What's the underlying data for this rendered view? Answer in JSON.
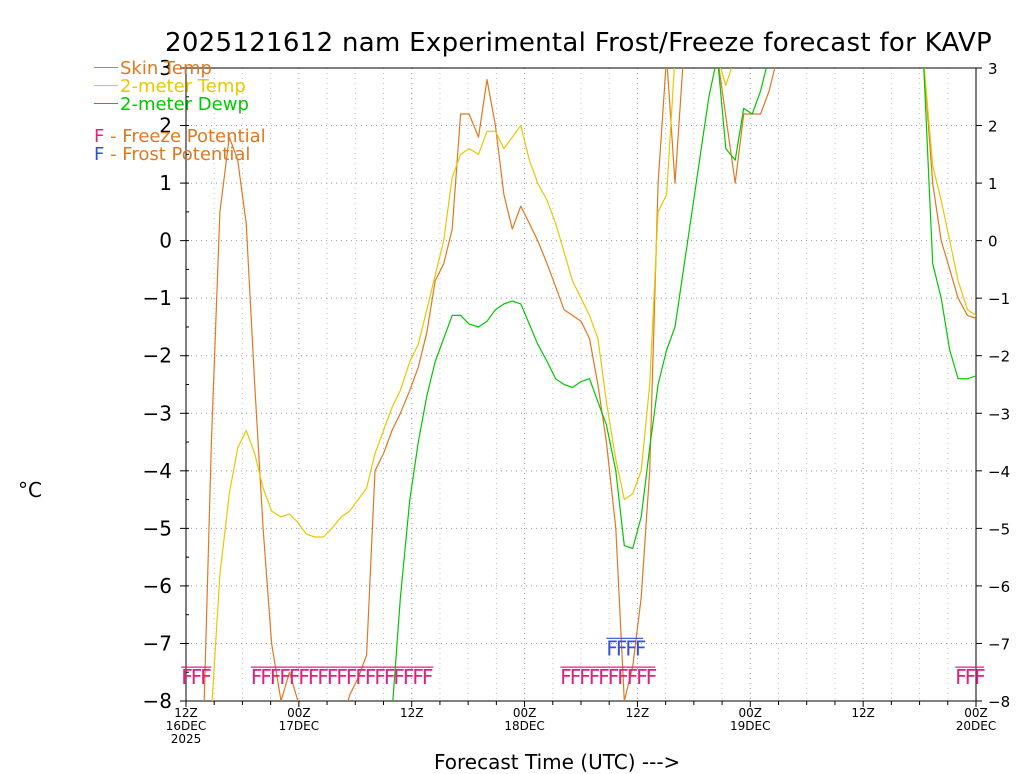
{
  "title": "2025121612 nam Experimental Frost/Freeze forecast for KAVP",
  "ylabel": "°C",
  "xlabel": "Forecast Time (UTC) --->",
  "colors": {
    "skin": "#e07820",
    "temp": "#e8c800",
    "dewp": "#00c800",
    "freeze": "#e0207c",
    "frost": "#3050d8",
    "grid": "#9a9a9a",
    "axis": "#000000"
  },
  "legend": {
    "skin": "Skin Temp",
    "temp": "2-meter Temp",
    "dewp": "2-meter Dewp",
    "freeze_letter": "F",
    "freeze_text": "- Freeze Potential",
    "frost_letter": "F",
    "frost_text": "- Frost Potential"
  },
  "chart_data": {
    "type": "line",
    "title": "2025121612 nam Experimental Frost/Freeze forecast for KAVP",
    "xlabel": "Forecast Time (UTC) --->",
    "ylabel": "°C",
    "xlim": [
      0,
      84
    ],
    "ylim": [
      -8,
      3
    ],
    "x_unit": "forecast hours from 2025-12-16 12Z",
    "yticks": [
      -8,
      -7,
      -6,
      -5,
      -4,
      -3,
      -2,
      -1,
      0,
      1,
      2,
      3
    ],
    "xticks": [
      {
        "x": 0,
        "label": "12Z",
        "sub": "16DEC",
        "sub2": "2025"
      },
      {
        "x": 12,
        "label": "00Z",
        "sub": "17DEC",
        "sub2": ""
      },
      {
        "x": 24,
        "label": "12Z",
        "sub": "",
        "sub2": ""
      },
      {
        "x": 36,
        "label": "00Z",
        "sub": "18DEC",
        "sub2": ""
      },
      {
        "x": 48,
        "label": "12Z",
        "sub": "",
        "sub2": ""
      },
      {
        "x": 60,
        "label": "00Z",
        "sub": "19DEC",
        "sub2": ""
      },
      {
        "x": 72,
        "label": "12Z",
        "sub": "",
        "sub2": ""
      },
      {
        "x": 84,
        "label": "00Z",
        "sub": "20DEC",
        "sub2": ""
      }
    ],
    "series": [
      {
        "name": "Skin Temp",
        "key": "skin",
        "points": [
          [
            1.9,
            -8.2
          ],
          [
            2.7,
            -3.5
          ],
          [
            3.6,
            0.5
          ],
          [
            4.6,
            1.8
          ],
          [
            5.5,
            1.4
          ],
          [
            6.4,
            0.3
          ],
          [
            7.3,
            -2.5
          ],
          [
            8.2,
            -5.0
          ],
          [
            9.1,
            -7.0
          ],
          [
            10.1,
            -8.0
          ],
          [
            11.0,
            -7.5
          ],
          [
            11.9,
            -8.0
          ],
          [
            12.8,
            -8.5
          ],
          [
            14.6,
            -8.5
          ],
          [
            16.5,
            -8.5
          ],
          [
            17.4,
            -7.9
          ],
          [
            18.3,
            -7.6
          ],
          [
            19.2,
            -7.2
          ],
          [
            20.1,
            -4.0
          ],
          [
            21.0,
            -3.7
          ],
          [
            21.9,
            -3.3
          ],
          [
            22.8,
            -3.0
          ],
          [
            23.8,
            -2.6
          ],
          [
            24.7,
            -2.2
          ],
          [
            25.6,
            -1.6
          ],
          [
            26.5,
            -0.7
          ],
          [
            27.4,
            -0.4
          ],
          [
            28.3,
            0.2
          ],
          [
            29.2,
            2.2
          ],
          [
            30.1,
            2.2
          ],
          [
            31.1,
            1.8
          ],
          [
            32.0,
            2.8
          ],
          [
            32.9,
            2.0
          ],
          [
            33.8,
            0.8
          ],
          [
            34.7,
            0.2
          ],
          [
            35.6,
            0.6
          ],
          [
            36.5,
            0.3
          ],
          [
            37.4,
            0.0
          ],
          [
            38.4,
            -0.4
          ],
          [
            39.3,
            -0.8
          ],
          [
            40.2,
            -1.2
          ],
          [
            41.1,
            -1.3
          ],
          [
            42.0,
            -1.4
          ],
          [
            42.9,
            -1.7
          ],
          [
            43.8,
            -2.5
          ],
          [
            44.7,
            -3.5
          ],
          [
            45.7,
            -5.0
          ],
          [
            46.6,
            -8.0
          ],
          [
            47.5,
            -7.4
          ],
          [
            48.4,
            -6.2
          ],
          [
            49.3,
            -4.0
          ],
          [
            50.2,
            1.0
          ],
          [
            51.1,
            3.2
          ],
          [
            52.0,
            1.0
          ],
          [
            52.9,
            3.2
          ],
          [
            56.5,
            3.2
          ],
          [
            58.4,
            1.0
          ],
          [
            59.3,
            2.2
          ],
          [
            60.2,
            2.2
          ],
          [
            61.1,
            2.2
          ],
          [
            62.0,
            2.6
          ],
          [
            62.9,
            3.2
          ],
          [
            78.4,
            3.2
          ],
          [
            79.4,
            1.0
          ],
          [
            80.3,
            0.0
          ],
          [
            81.2,
            -0.5
          ],
          [
            82.1,
            -1.0
          ],
          [
            83.1,
            -1.3
          ],
          [
            84,
            -1.35
          ]
        ]
      },
      {
        "name": "2-meter Temp",
        "key": "temp",
        "points": [
          [
            2.7,
            -8.2
          ],
          [
            3.6,
            -5.8
          ],
          [
            4.6,
            -4.4
          ],
          [
            5.5,
            -3.6
          ],
          [
            6.4,
            -3.3
          ],
          [
            7.3,
            -3.7
          ],
          [
            8.2,
            -4.3
          ],
          [
            9.1,
            -4.7
          ],
          [
            10.1,
            -4.8
          ],
          [
            11.0,
            -4.75
          ],
          [
            11.9,
            -4.9
          ],
          [
            12.8,
            -5.1
          ],
          [
            13.7,
            -5.15
          ],
          [
            14.6,
            -5.15
          ],
          [
            15.5,
            -5.0
          ],
          [
            16.5,
            -4.8
          ],
          [
            17.4,
            -4.7
          ],
          [
            18.3,
            -4.5
          ],
          [
            19.2,
            -4.3
          ],
          [
            20.1,
            -3.7
          ],
          [
            21.0,
            -3.3
          ],
          [
            21.9,
            -2.9
          ],
          [
            22.8,
            -2.6
          ],
          [
            23.8,
            -2.1
          ],
          [
            24.7,
            -1.8
          ],
          [
            25.6,
            -1.2
          ],
          [
            26.5,
            -0.6
          ],
          [
            27.4,
            0.0
          ],
          [
            28.3,
            1.1
          ],
          [
            29.2,
            1.5
          ],
          [
            30.1,
            1.6
          ],
          [
            31.1,
            1.5
          ],
          [
            32.0,
            1.9
          ],
          [
            32.9,
            1.9
          ],
          [
            33.8,
            1.6
          ],
          [
            34.7,
            1.8
          ],
          [
            35.6,
            2.0
          ],
          [
            36.5,
            1.4
          ],
          [
            37.4,
            1.0
          ],
          [
            38.4,
            0.7
          ],
          [
            39.3,
            0.3
          ],
          [
            40.2,
            -0.2
          ],
          [
            41.1,
            -0.7
          ],
          [
            42.0,
            -1.0
          ],
          [
            42.9,
            -1.3
          ],
          [
            43.8,
            -1.7
          ],
          [
            44.7,
            -2.8
          ],
          [
            45.7,
            -3.8
          ],
          [
            46.6,
            -4.5
          ],
          [
            47.5,
            -4.4
          ],
          [
            48.4,
            -4.0
          ],
          [
            49.3,
            -2.5
          ],
          [
            50.2,
            0.5
          ],
          [
            51.1,
            0.8
          ],
          [
            52.0,
            3.2
          ],
          [
            56.5,
            3.2
          ],
          [
            57.4,
            2.7
          ],
          [
            58.4,
            3.2
          ],
          [
            78.4,
            3.2
          ],
          [
            79.4,
            1.3
          ],
          [
            80.3,
            0.7
          ],
          [
            81.2,
            0.0
          ],
          [
            82.1,
            -0.7
          ],
          [
            83.1,
            -1.2
          ],
          [
            84,
            -1.3
          ]
        ]
      },
      {
        "name": "2-meter Dewp",
        "key": "dewp",
        "points": [
          [
            21.9,
            -8.2
          ],
          [
            22.8,
            -6.2
          ],
          [
            23.8,
            -4.5
          ],
          [
            24.7,
            -3.5
          ],
          [
            25.6,
            -2.7
          ],
          [
            26.5,
            -2.1
          ],
          [
            27.4,
            -1.7
          ],
          [
            28.3,
            -1.3
          ],
          [
            29.2,
            -1.3
          ],
          [
            30.1,
            -1.45
          ],
          [
            31.1,
            -1.5
          ],
          [
            32.0,
            -1.4
          ],
          [
            32.9,
            -1.2
          ],
          [
            33.8,
            -1.1
          ],
          [
            34.7,
            -1.05
          ],
          [
            35.6,
            -1.1
          ],
          [
            36.5,
            -1.45
          ],
          [
            37.4,
            -1.8
          ],
          [
            38.4,
            -2.1
          ],
          [
            39.3,
            -2.4
          ],
          [
            40.2,
            -2.5
          ],
          [
            41.1,
            -2.55
          ],
          [
            42.0,
            -2.45
          ],
          [
            42.9,
            -2.4
          ],
          [
            43.8,
            -2.8
          ],
          [
            44.7,
            -3.2
          ],
          [
            45.7,
            -4.0
          ],
          [
            46.6,
            -5.3
          ],
          [
            47.5,
            -5.35
          ],
          [
            48.4,
            -4.8
          ],
          [
            49.3,
            -3.6
          ],
          [
            50.2,
            -2.5
          ],
          [
            51.1,
            -1.9
          ],
          [
            52.0,
            -1.5
          ],
          [
            52.9,
            -0.5
          ],
          [
            53.8,
            0.5
          ],
          [
            54.7,
            1.5
          ],
          [
            55.6,
            2.5
          ],
          [
            56.5,
            3.2
          ],
          [
            57.4,
            1.6
          ],
          [
            58.4,
            1.4
          ],
          [
            59.3,
            2.3
          ],
          [
            60.2,
            2.2
          ],
          [
            61.1,
            2.6
          ],
          [
            62.0,
            3.2
          ],
          [
            78.4,
            3.2
          ],
          [
            79.4,
            -0.4
          ],
          [
            80.3,
            -1.0
          ],
          [
            81.2,
            -1.9
          ],
          [
            82.1,
            -2.4
          ],
          [
            83.1,
            -2.4
          ],
          [
            84,
            -2.35
          ]
        ]
      }
    ],
    "freeze_potential": {
      "letter": "F",
      "value": -7.55,
      "runs": [
        [
          -0.5,
          2.7
        ],
        [
          6.9,
          26.3
        ],
        [
          39.8,
          49.9
        ],
        [
          81.8,
          85.0
        ]
      ]
    },
    "frost_potential": {
      "letter": "F",
      "value": -7.05,
      "runs": [
        [
          44.7,
          48.6
        ]
      ]
    }
  }
}
